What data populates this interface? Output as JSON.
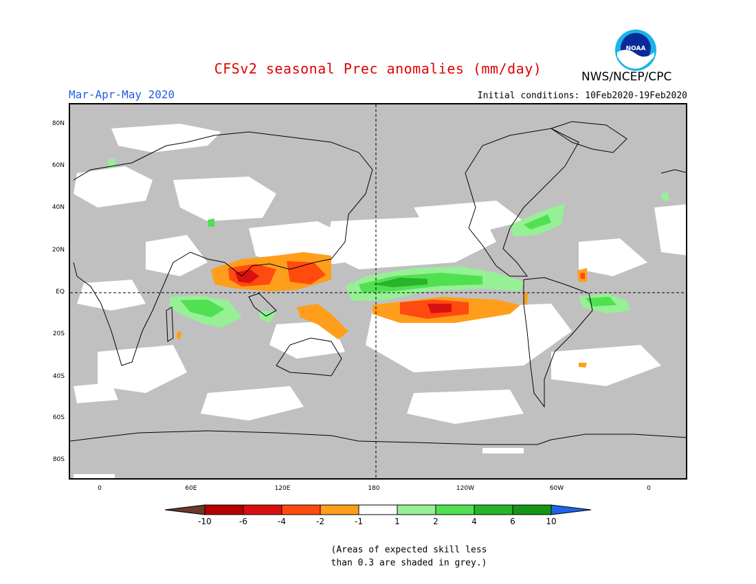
{
  "title": "CFSv2 seasonal Prec anomalies (mm/day)",
  "season": "Mar-Apr-May 2020",
  "initial_conditions": "Initial conditions: 10Feb2020-19Feb2020",
  "agency": "NWS/NCEP/CPC",
  "logo": {
    "icon": "noaa-logo-icon",
    "text": "NOAA"
  },
  "map": {
    "lat_ticks": [
      "80N",
      "60N",
      "40N",
      "20N",
      "EQ",
      "20S",
      "40S",
      "60S",
      "80S"
    ],
    "lon_ticks": [
      "0",
      "60E",
      "120E",
      "180",
      "120W",
      "60W",
      "0"
    ],
    "background_grey": "#c0c0c0",
    "reference_lines": [
      "EQ",
      "180"
    ]
  },
  "colorbar": {
    "labels": [
      "-10",
      "-6",
      "-4",
      "-2",
      "-1",
      "1",
      "2",
      "4",
      "6",
      "10"
    ],
    "colors": [
      "#6b3a2a",
      "#b40000",
      "#d91010",
      "#ff4a10",
      "#ff9e1a",
      "#ffffff",
      "#96f096",
      "#50e050",
      "#28b428",
      "#149614",
      "#1e64e6"
    ]
  },
  "note": {
    "line1": "(Areas of expected skill less",
    "line2": "than 0.3 are shaded in grey.)"
  }
}
